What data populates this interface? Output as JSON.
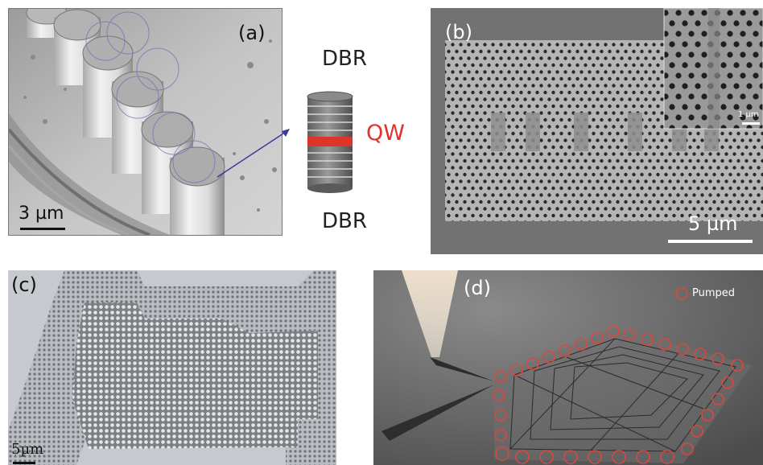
{
  "panels": {
    "a": {
      "label": "(a)",
      "scale_bar": "3 µm",
      "schematic": {
        "top": "DBR",
        "middle": "QW",
        "bottom": "DBR"
      },
      "colors": {
        "qw": "#e0332c",
        "pointer": "#3b3a9a"
      }
    },
    "b": {
      "label": "(b)",
      "scale_bar": "5 µm",
      "inset_scale_bar": "1 µm"
    },
    "c": {
      "label": "(c)",
      "scale_bar": "5µm"
    },
    "d": {
      "label": "(d)",
      "legend": "Pumped",
      "colors": {
        "pumped": "#e0463c"
      }
    }
  }
}
